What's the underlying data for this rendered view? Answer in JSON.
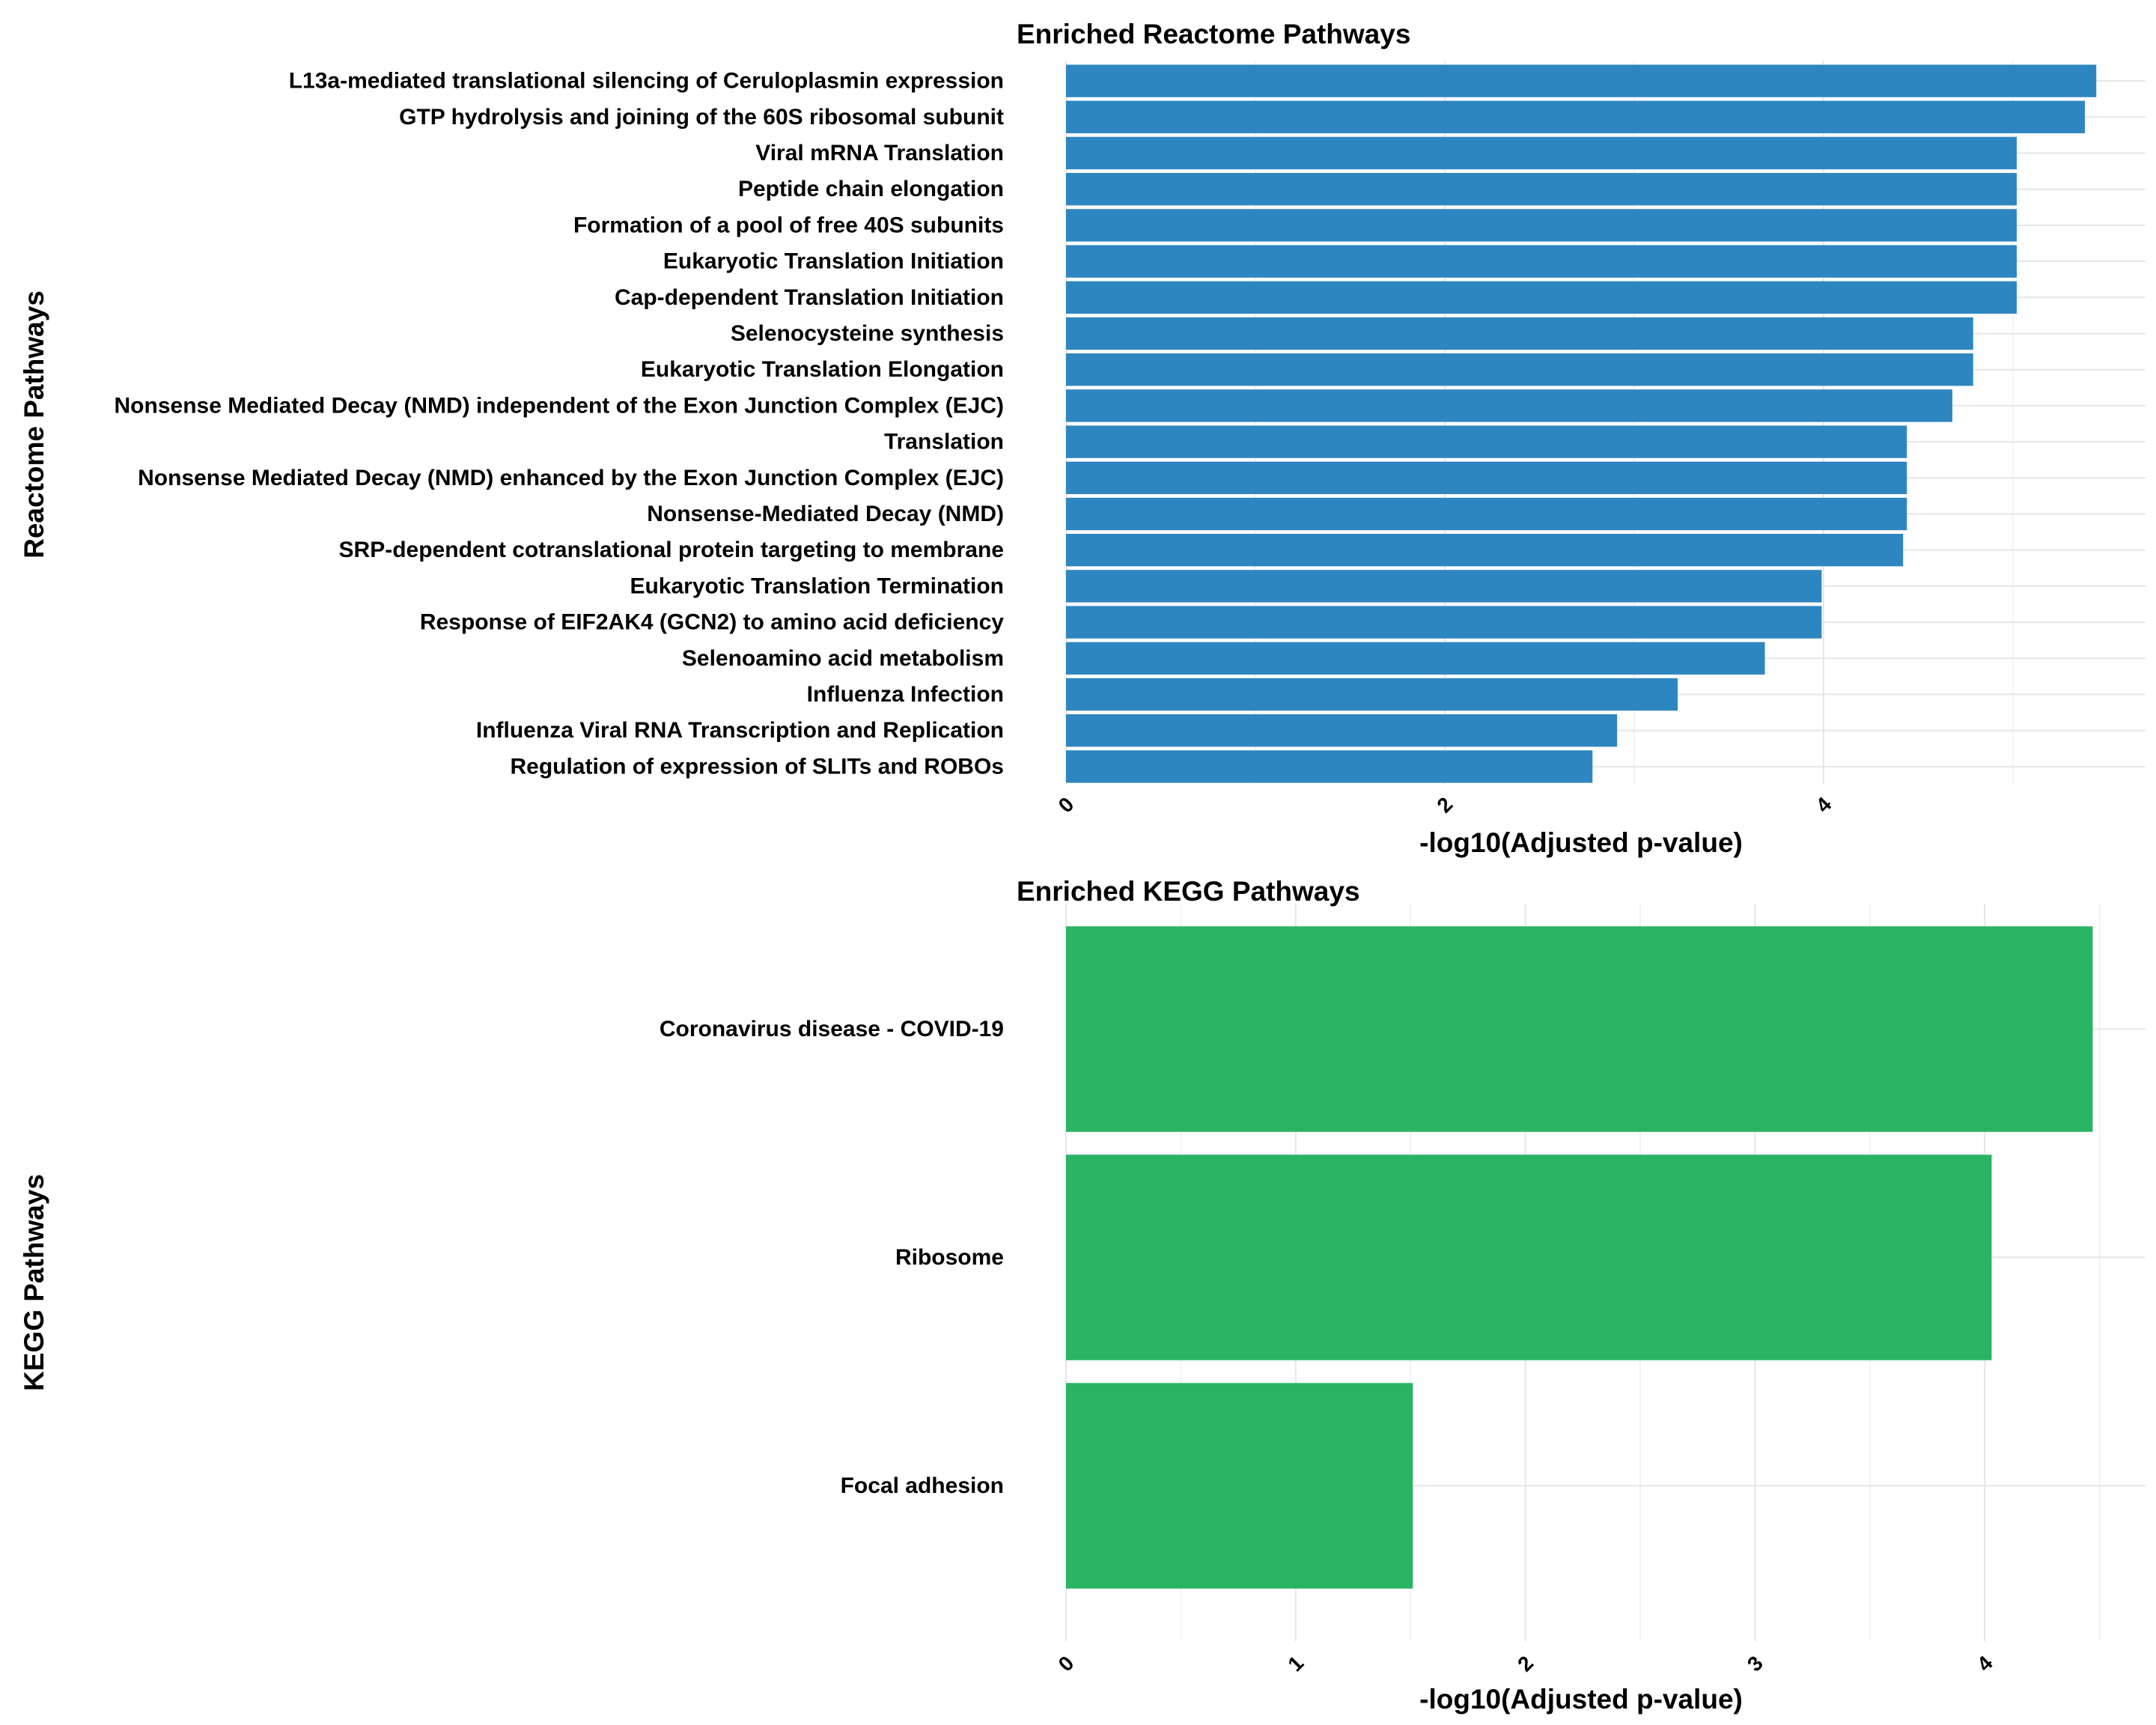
{
  "chart_data": [
    {
      "type": "bar",
      "orientation": "horizontal",
      "title": "Enriched Reactome Pathways",
      "xlabel": "-log10(Adjusted p-value)",
      "ylabel": "Reactome Pathways",
      "bar_color": "#2E86C1",
      "xlim": [
        0,
        5.7
      ],
      "xticks": [
        0,
        2,
        4
      ],
      "xtick_labels": [
        "0",
        "2",
        "4"
      ],
      "grid": true,
      "legend": "none",
      "categories": [
        "L13a-mediated translational silencing of Ceruloplasmin expression",
        "GTP hydrolysis and joining of the 60S ribosomal subunit",
        "Viral mRNA Translation",
        "Peptide chain elongation",
        "Formation of a pool of free 40S subunits",
        "Eukaryotic Translation Initiation",
        "Cap-dependent Translation Initiation",
        "Selenocysteine synthesis",
        "Eukaryotic Translation Elongation",
        "Nonsense Mediated Decay (NMD) independent of the Exon Junction Complex (EJC)",
        "Translation",
        "Nonsense Mediated Decay (NMD) enhanced by the Exon Junction Complex (EJC)",
        "Nonsense-Mediated Decay (NMD)",
        "SRP-dependent cotranslational protein targeting to membrane",
        "Eukaryotic Translation Termination",
        "Response of EIF2AK4 (GCN2) to amino acid deficiency",
        "Selenoamino acid metabolism",
        "Influenza Infection",
        "Influenza Viral RNA Transcription and Replication",
        "Regulation of expression of SLITs and ROBOs"
      ],
      "values": [
        5.44,
        5.38,
        5.02,
        5.02,
        5.02,
        5.02,
        5.02,
        4.79,
        4.79,
        4.68,
        4.44,
        4.44,
        4.44,
        4.42,
        3.99,
        3.99,
        3.69,
        3.23,
        2.91,
        2.78
      ]
    },
    {
      "type": "bar",
      "orientation": "horizontal",
      "title": "Enriched KEGG Pathways",
      "xlabel": "-log10(Adjusted p-value)",
      "ylabel": "KEGG Pathways",
      "bar_color": "#28B463",
      "xlim": [
        0,
        4.7
      ],
      "xticks": [
        0,
        1,
        2,
        3,
        4
      ],
      "xtick_labels": [
        "0",
        "1",
        "2",
        "3",
        "4"
      ],
      "grid": true,
      "legend": "none",
      "categories": [
        "Coronavirus disease - COVID-19",
        "Ribosome",
        "Focal adhesion"
      ],
      "values": [
        4.47,
        4.03,
        1.51
      ]
    }
  ]
}
